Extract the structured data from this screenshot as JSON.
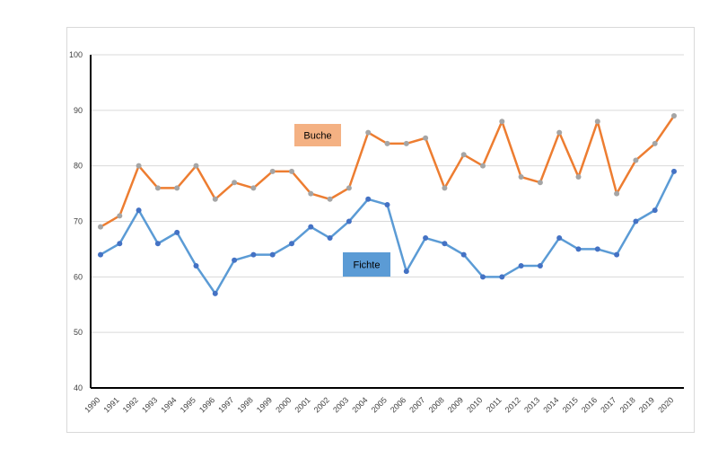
{
  "chart_data": {
    "type": "line",
    "x": [
      "1990",
      "1991",
      "1992",
      "1993",
      "1994",
      "1995",
      "1996",
      "1997",
      "1998",
      "1999",
      "2000",
      "2001",
      "2002",
      "2003",
      "2004",
      "2005",
      "2006",
      "2007",
      "2008",
      "2009",
      "2010",
      "2011",
      "2012",
      "2013",
      "2014",
      "2015",
      "2016",
      "2017",
      "2018",
      "2019",
      "2020"
    ],
    "ylim": [
      40,
      100
    ],
    "yticks": [
      40,
      50,
      60,
      70,
      80,
      90,
      100
    ],
    "grid": true,
    "series": [
      {
        "name": "Buche",
        "line_color": "#ED7D31",
        "marker_color": "#A5A5A5",
        "label_bg": "#F4B183",
        "values": [
          69,
          71,
          80,
          76,
          76,
          80,
          74,
          77,
          76,
          79,
          79,
          75,
          74,
          76,
          86,
          84,
          84,
          85,
          76,
          82,
          80,
          88,
          78,
          77,
          86,
          78,
          88,
          75,
          81,
          84,
          89
        ]
      },
      {
        "name": "Fichte",
        "line_color": "#5B9BD5",
        "marker_color": "#4472C4",
        "label_bg": "#5B9BD5",
        "values": [
          64,
          66,
          72,
          66,
          68,
          62,
          57,
          63,
          64,
          64,
          66,
          69,
          67,
          70,
          74,
          73,
          61,
          67,
          66,
          64,
          60,
          60,
          62,
          62,
          67,
          65,
          65,
          64,
          70,
          72,
          79
        ]
      }
    ]
  }
}
